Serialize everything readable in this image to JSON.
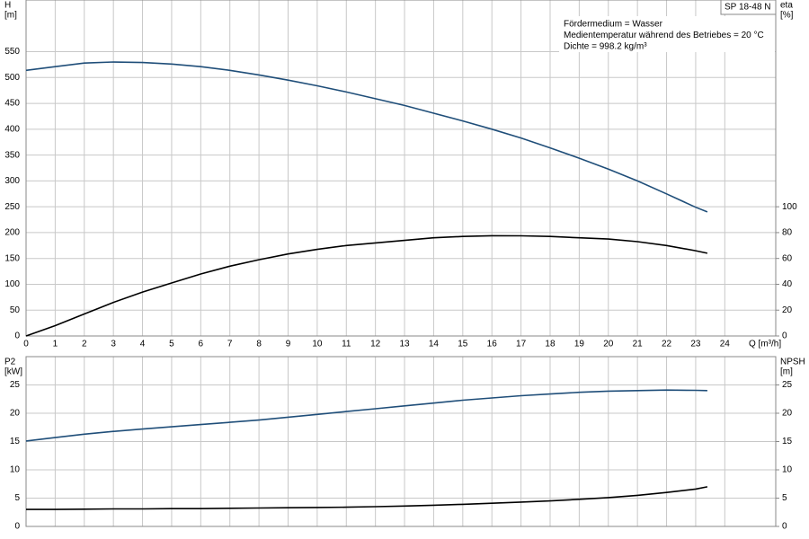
{
  "chart_data": [
    {
      "type": "line",
      "model": "SP 18-48 N",
      "notes": [
        "Fördermedium = Wasser",
        "Medientemperatur während des Betriebes = 20 °C",
        "Dichte = 998.2 kg/m³"
      ],
      "ylabel": "H",
      "ylabel_unit": "[m]",
      "y2label": "eta",
      "y2label_unit": "[%]",
      "xlabel": "Q [m³/h]",
      "x": [
        0,
        1,
        2,
        3,
        4,
        5,
        6,
        7,
        8,
        9,
        10,
        11,
        12,
        13,
        14,
        15,
        16,
        17,
        18,
        19,
        20,
        21,
        22,
        23,
        23.4
      ],
      "xlim": [
        0,
        25.75
      ],
      "xticks": [
        0,
        1,
        2,
        3,
        4,
        5,
        6,
        7,
        8,
        9,
        10,
        11,
        12,
        13,
        14,
        15,
        16,
        17,
        18,
        19,
        20,
        21,
        22,
        23,
        24
      ],
      "ylim": [
        0,
        650
      ],
      "yticks": [
        0,
        50,
        100,
        150,
        200,
        250,
        300,
        350,
        400,
        450,
        500,
        550
      ],
      "y2lim": [
        0,
        260
      ],
      "y2ticks": [
        0,
        20,
        40,
        60,
        80,
        100
      ],
      "grid": true,
      "series": [
        {
          "name": "H",
          "color": "#1f4e79",
          "values": [
            514,
            521,
            528,
            530,
            529,
            526,
            521,
            514,
            505,
            495,
            484,
            472,
            459,
            446,
            431,
            416,
            400,
            383,
            364,
            344,
            323,
            300,
            275,
            249,
            240
          ]
        },
        {
          "name": "eta",
          "color": "#000000",
          "axis": "y2",
          "values": [
            0,
            8,
            17,
            26,
            34,
            41,
            48,
            54,
            59,
            63.5,
            67,
            70,
            72,
            74,
            76,
            77,
            77.6,
            77.5,
            77,
            76,
            75,
            73,
            70,
            66,
            64
          ]
        }
      ]
    },
    {
      "type": "line",
      "ylabel": "P2",
      "ylabel_unit": "[kW]",
      "y2label": "NPSH",
      "y2label_unit": "[m]",
      "x": [
        0,
        1,
        2,
        3,
        4,
        5,
        6,
        7,
        8,
        9,
        10,
        11,
        12,
        13,
        14,
        15,
        16,
        17,
        18,
        19,
        20,
        21,
        22,
        23,
        23.4
      ],
      "xlim": [
        0,
        25.75
      ],
      "ylim": [
        0,
        30
      ],
      "yticks": [
        0,
        5,
        10,
        15,
        20,
        25
      ],
      "y2lim": [
        0,
        30
      ],
      "y2ticks": [
        0,
        5,
        10,
        15,
        20,
        25
      ],
      "grid": true,
      "series": [
        {
          "name": "P2",
          "color": "#1f4e79",
          "values": [
            15.1,
            15.7,
            16.3,
            16.8,
            17.2,
            17.6,
            18,
            18.4,
            18.8,
            19.3,
            19.8,
            20.3,
            20.8,
            21.3,
            21.8,
            22.3,
            22.7,
            23.1,
            23.4,
            23.7,
            23.9,
            24.0,
            24.1,
            24.05,
            24.0
          ]
        },
        {
          "name": "NPSH",
          "color": "#000000",
          "axis": "y2",
          "values": [
            3.0,
            3.0,
            3.05,
            3.1,
            3.1,
            3.15,
            3.15,
            3.2,
            3.25,
            3.3,
            3.35,
            3.4,
            3.5,
            3.6,
            3.75,
            3.9,
            4.1,
            4.3,
            4.5,
            4.8,
            5.1,
            5.5,
            6.0,
            6.6,
            7.0
          ]
        }
      ]
    }
  ]
}
